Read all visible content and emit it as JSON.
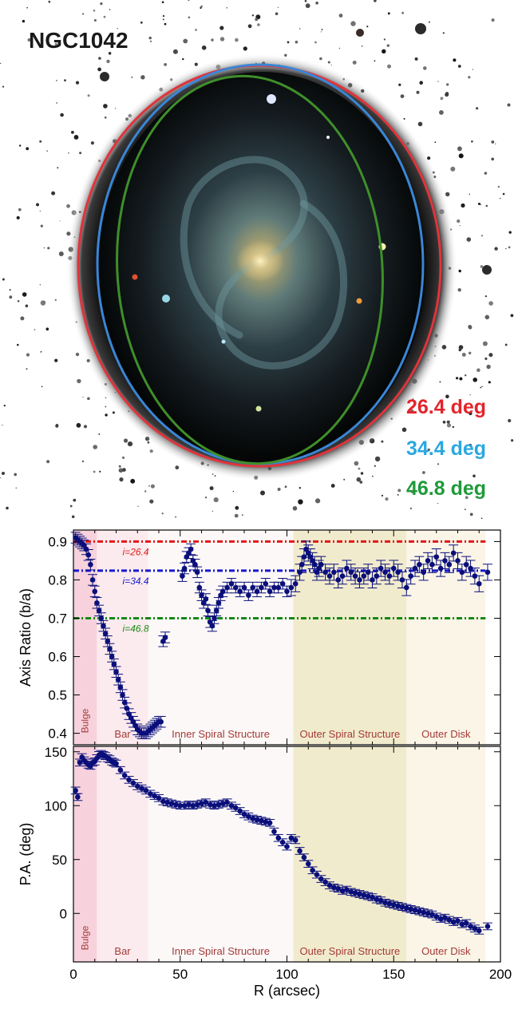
{
  "image_panel": {
    "title": "NGC1042",
    "ellipse_labels": [
      {
        "text": "26.4 deg",
        "color": "#e3242b"
      },
      {
        "text": "34.4 deg",
        "color": "#29a8e0"
      },
      {
        "text": "46.8 deg",
        "color": "#1f9a3a"
      }
    ],
    "ellipse_colors": {
      "red": "#e0343c",
      "blue": "#3a86d6",
      "green": "#3f8f2a"
    }
  },
  "chart_data": [
    {
      "type": "scatter",
      "title": "",
      "xlabel": "",
      "ylabel": "Axis Ratio (b/a)",
      "xlim": [
        0,
        200
      ],
      "ylim": [
        0.37,
        0.93
      ],
      "yticks": [
        "0.4",
        "0.5",
        "0.6",
        "0.7",
        "0.8",
        "0.9"
      ],
      "ytick_values": [
        0.4,
        0.5,
        0.6,
        0.7,
        0.8,
        0.9
      ],
      "marker_color": "#0a0f7a",
      "reference_lines": [
        {
          "y": 0.9,
          "label": "i=26.4",
          "color": "#e01818"
        },
        {
          "y": 0.824,
          "label": "i=34.4",
          "color": "#1818d0"
        },
        {
          "y": 0.7,
          "label": "i=46.8",
          "color": "#138a13"
        }
      ],
      "regions": [
        {
          "x0": 0,
          "x1": 11,
          "label": "Bulge",
          "color": "#f7d2dc",
          "vertical": true
        },
        {
          "x0": 11,
          "x1": 35,
          "label": "Bar",
          "color": "#fcebee"
        },
        {
          "x0": 35,
          "x1": 103,
          "label": "Inner Spiral Structure",
          "color": "#fcf8f7"
        },
        {
          "x0": 103,
          "x1": 156,
          "label": "Outer Spiral Structure",
          "color": "#f1ebcd"
        },
        {
          "x0": 156,
          "x1": 193,
          "label": "Outer Disk",
          "color": "#faf5e6"
        }
      ],
      "x": [
        1,
        2,
        3,
        4,
        5,
        6,
        7,
        8,
        9,
        10,
        11,
        12,
        13,
        14,
        15,
        16,
        17,
        18,
        19,
        20,
        21,
        22,
        23,
        24,
        25,
        26,
        27,
        28,
        29,
        30,
        31,
        32,
        33,
        34,
        35,
        36,
        37,
        38,
        39,
        40,
        41,
        42,
        43,
        51,
        52,
        53,
        54,
        55,
        56,
        57,
        58,
        59,
        60,
        61,
        62,
        63,
        64,
        65,
        66,
        67,
        68,
        69,
        70,
        72,
        74,
        76,
        78,
        80,
        82,
        84,
        86,
        88,
        90,
        92,
        94,
        96,
        98,
        100,
        102,
        104,
        106,
        107,
        108,
        109,
        110,
        111,
        112,
        113,
        114,
        115,
        116,
        118,
        120,
        122,
        124,
        126,
        128,
        130,
        132,
        134,
        136,
        138,
        140,
        142,
        144,
        146,
        148,
        150,
        152,
        154,
        156,
        158,
        160,
        162,
        164,
        166,
        168,
        170,
        172,
        174,
        176,
        178,
        180,
        182,
        184,
        186,
        188,
        190,
        194
      ],
      "y": [
        0.91,
        0.905,
        0.9,
        0.895,
        0.89,
        0.88,
        0.865,
        0.84,
        0.8,
        0.77,
        0.74,
        0.72,
        0.7,
        0.68,
        0.66,
        0.64,
        0.62,
        0.6,
        0.58,
        0.56,
        0.54,
        0.52,
        0.5,
        0.48,
        0.465,
        0.45,
        0.44,
        0.43,
        0.42,
        0.41,
        0.405,
        0.4,
        0.4,
        0.4,
        0.405,
        0.41,
        0.415,
        0.42,
        0.425,
        0.43,
        0.43,
        0.64,
        0.65,
        0.81,
        0.83,
        0.86,
        0.87,
        0.88,
        0.85,
        0.84,
        0.82,
        0.78,
        0.76,
        0.74,
        0.75,
        0.72,
        0.69,
        0.68,
        0.7,
        0.72,
        0.74,
        0.76,
        0.77,
        0.78,
        0.79,
        0.78,
        0.77,
        0.78,
        0.76,
        0.78,
        0.77,
        0.78,
        0.79,
        0.77,
        0.78,
        0.78,
        0.79,
        0.77,
        0.78,
        0.79,
        0.82,
        0.84,
        0.86,
        0.88,
        0.87,
        0.86,
        0.85,
        0.84,
        0.82,
        0.83,
        0.84,
        0.82,
        0.81,
        0.82,
        0.8,
        0.81,
        0.83,
        0.82,
        0.81,
        0.8,
        0.81,
        0.82,
        0.8,
        0.81,
        0.83,
        0.82,
        0.81,
        0.83,
        0.82,
        0.8,
        0.78,
        0.81,
        0.83,
        0.84,
        0.82,
        0.85,
        0.84,
        0.86,
        0.83,
        0.85,
        0.84,
        0.87,
        0.85,
        0.82,
        0.84,
        0.83,
        0.81,
        0.79,
        0.82
      ]
    },
    {
      "type": "scatter",
      "title": "",
      "xlabel": "R (arcsec)",
      "ylabel": "P.A. (deg)",
      "xlim": [
        0,
        200
      ],
      "ylim": [
        -45,
        155
      ],
      "xticks": [
        "0",
        "50",
        "100",
        "150",
        "200"
      ],
      "xtick_values": [
        0,
        50,
        100,
        150,
        200
      ],
      "yticks": [
        "0",
        "50",
        "100",
        "150"
      ],
      "ytick_values": [
        0,
        50,
        100,
        150
      ],
      "marker_color": "#0a0f7a",
      "regions": [
        {
          "x0": 0,
          "x1": 11,
          "label": "Bulge",
          "color": "#f7d2dc",
          "vertical": true
        },
        {
          "x0": 11,
          "x1": 35,
          "label": "Bar",
          "color": "#fcebee"
        },
        {
          "x0": 35,
          "x1": 103,
          "label": "Inner Spiral Structure",
          "color": "#fcf8f7"
        },
        {
          "x0": 103,
          "x1": 156,
          "label": "Outer Spiral Structure",
          "color": "#f1ebcd"
        },
        {
          "x0": 156,
          "x1": 193,
          "label": "Outer Disk",
          "color": "#faf5e6"
        }
      ],
      "x": [
        1,
        2,
        3,
        4,
        5,
        6,
        7,
        8,
        9,
        10,
        11,
        12,
        13,
        14,
        15,
        16,
        17,
        18,
        19,
        20,
        22,
        24,
        26,
        28,
        30,
        32,
        34,
        36,
        38,
        40,
        42,
        44,
        46,
        48,
        50,
        52,
        54,
        56,
        58,
        60,
        62,
        64,
        66,
        68,
        70,
        72,
        74,
        76,
        78,
        80,
        82,
        84,
        86,
        88,
        90,
        92,
        94,
        96,
        98,
        100,
        102,
        104,
        106,
        108,
        110,
        112,
        114,
        116,
        118,
        120,
        122,
        124,
        126,
        128,
        130,
        132,
        134,
        136,
        138,
        140,
        142,
        144,
        146,
        148,
        150,
        152,
        154,
        156,
        158,
        160,
        162,
        164,
        166,
        168,
        170,
        172,
        174,
        176,
        178,
        180,
        182,
        184,
        186,
        188,
        190,
        194
      ],
      "y": [
        114,
        108,
        140,
        145,
        142,
        140,
        138,
        137,
        140,
        141,
        144,
        147,
        148,
        147,
        146,
        144,
        143,
        141,
        140,
        139,
        133,
        128,
        124,
        121,
        118,
        116,
        114,
        111,
        109,
        107,
        104,
        103,
        102,
        101,
        100,
        100,
        101,
        100,
        101,
        102,
        103,
        101,
        100,
        101,
        102,
        103,
        100,
        98,
        95,
        92,
        90,
        88,
        87,
        86,
        85,
        84,
        76,
        70,
        66,
        62,
        70,
        68,
        58,
        52,
        46,
        40,
        36,
        32,
        29,
        26,
        24,
        23,
        21,
        22,
        20,
        19,
        18,
        17,
        16,
        15,
        13,
        12,
        10,
        9,
        8,
        7,
        6,
        5,
        4,
        3,
        2,
        1,
        0,
        -1,
        -3,
        -5,
        -4,
        -6,
        -8,
        -7,
        -10,
        -9,
        -12,
        -14,
        -16,
        -12
      ]
    }
  ]
}
